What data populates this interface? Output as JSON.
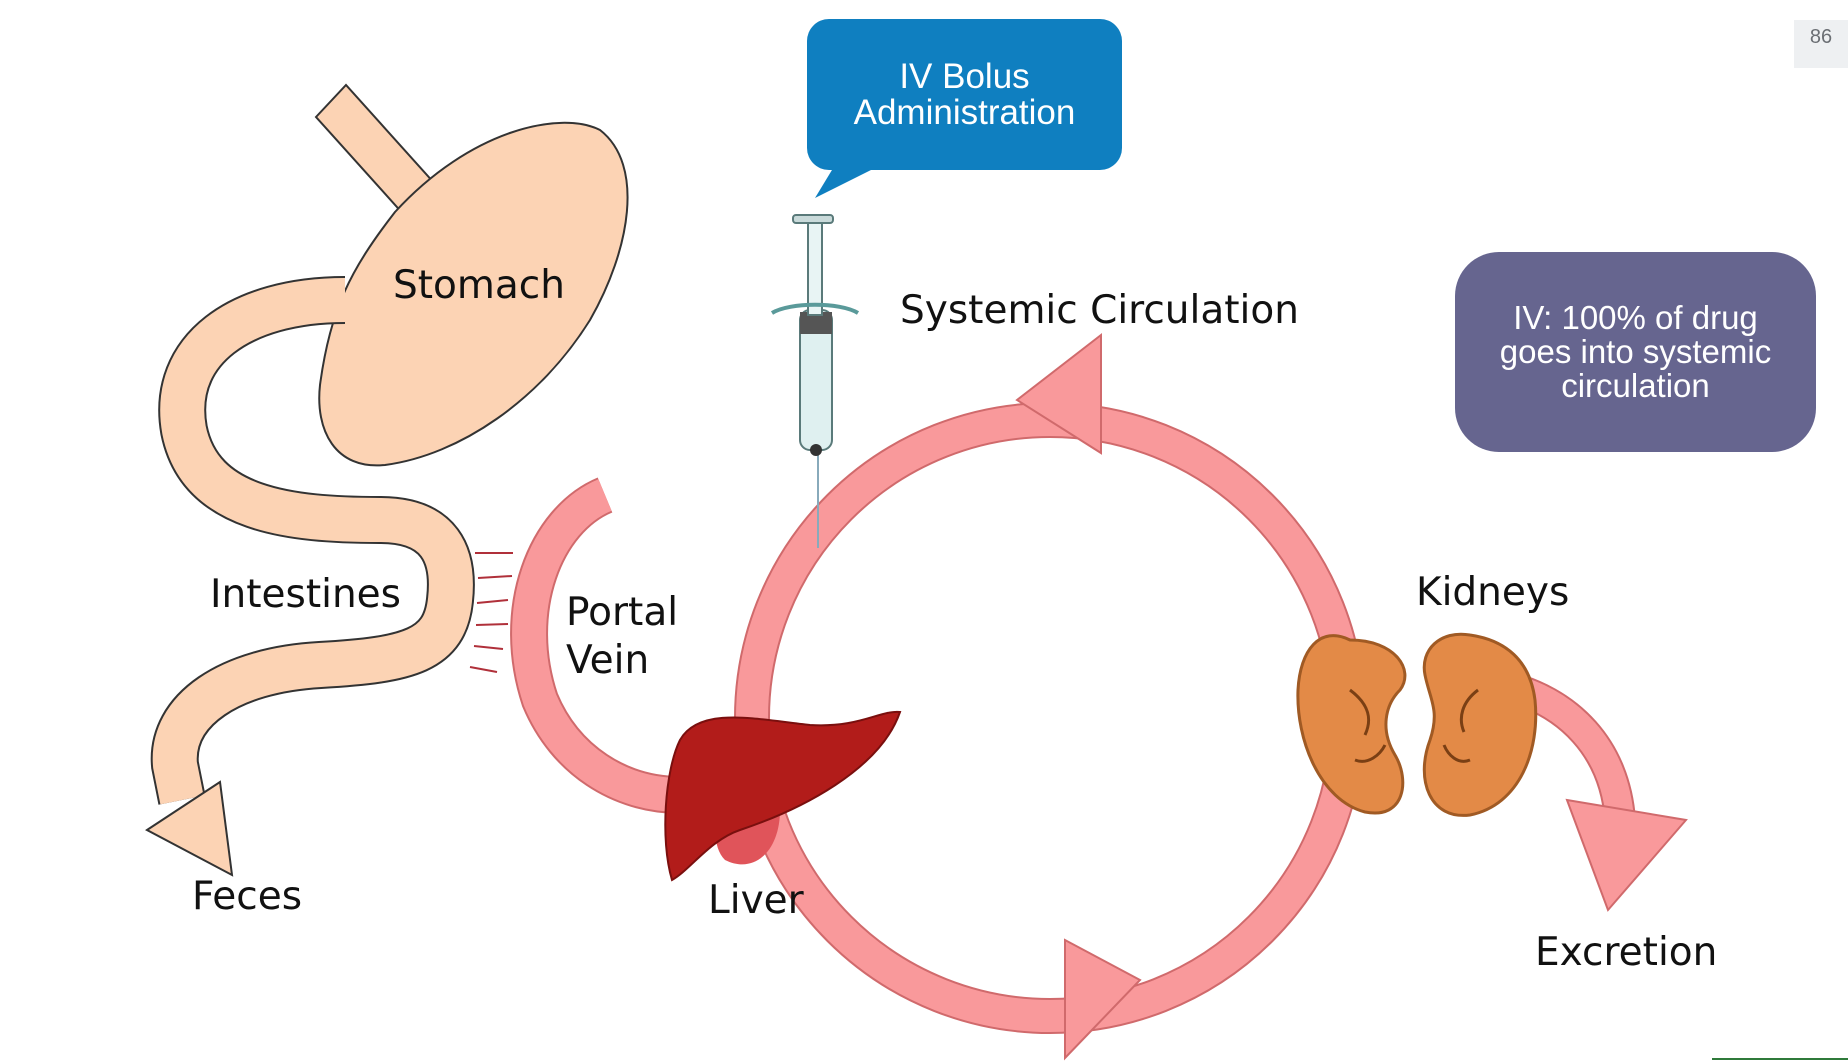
{
  "page_number": "86",
  "callouts": {
    "iv_bolus": [
      "IV Bolus",
      "Administration"
    ],
    "iv_note": [
      "IV: 100% of drug",
      "goes into systemic",
      "circulation"
    ]
  },
  "labels": {
    "stomach": "Stomach",
    "intestines": "Intestines",
    "feces": "Feces",
    "portal_vein": [
      "Portal",
      "Vein"
    ],
    "liver": "Liver",
    "systemic_circulation": "Systemic Circulation",
    "kidneys": "Kidneys",
    "excretion": "Excretion"
  },
  "colors": {
    "gut_fill": "#fcd3b4",
    "vessel_fill": "#f9999b",
    "liver_fill": "#b21c1a",
    "kidney_fill": "#e38a47",
    "callout_blue": "#0f7fc0",
    "callout_purple": "#66658f"
  }
}
